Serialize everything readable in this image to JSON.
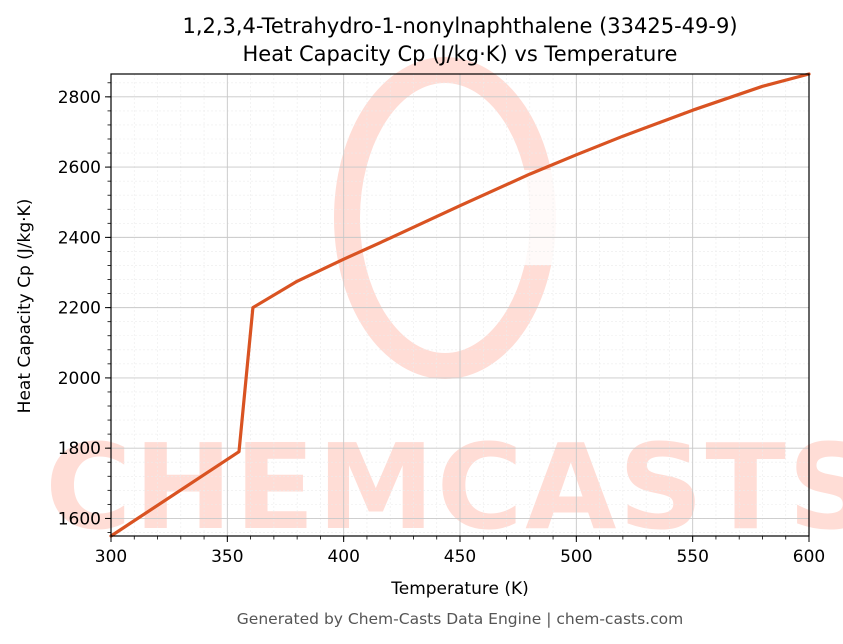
{
  "chart_data": {
    "type": "line",
    "title": "1,2,3,4-Tetrahydro-1-nonylnaphthalene (33425-49-9)",
    "subtitle": "Heat Capacity Cp (J/kg·K) vs Temperature",
    "xlabel": "Temperature (K)",
    "ylabel": "Heat Capacity Cp (J/kg·K)",
    "xlim": [
      300,
      600
    ],
    "ylim": [
      1550,
      2865
    ],
    "x_ticks": [
      300,
      350,
      400,
      450,
      500,
      550,
      600
    ],
    "y_ticks": [
      1600,
      1800,
      2000,
      2200,
      2400,
      2600,
      2800
    ],
    "grid": true,
    "line_color": "#d95322",
    "series": [
      {
        "name": "",
        "x": [
          300,
          355,
          361,
          380,
          400,
          420,
          450,
          480,
          500,
          520,
          550,
          580,
          600
        ],
        "y": [
          1550,
          1790,
          2200,
          2275,
          2338,
          2398,
          2490,
          2580,
          2635,
          2688,
          2762,
          2830,
          2865
        ]
      }
    ]
  },
  "watermark": {
    "text": "CHEMCASTS",
    "color": "#ffddd6"
  },
  "footer": "Generated by Chem-Casts Data Engine | chem-casts.com"
}
